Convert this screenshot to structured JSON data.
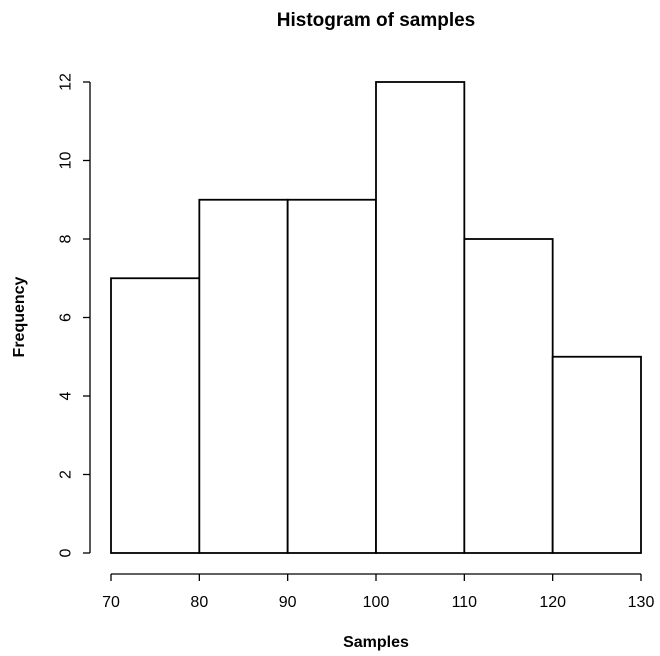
{
  "chart_data": {
    "type": "bar",
    "title": "Histogram of samples",
    "xlabel": "Samples",
    "ylabel": "Frequency",
    "bins": [
      {
        "start": 70,
        "end": 80,
        "count": 7
      },
      {
        "start": 80,
        "end": 90,
        "count": 9
      },
      {
        "start": 90,
        "end": 100,
        "count": 9
      },
      {
        "start": 100,
        "end": 110,
        "count": 12
      },
      {
        "start": 110,
        "end": 120,
        "count": 8
      },
      {
        "start": 120,
        "end": 130,
        "count": 5
      }
    ],
    "xlim": [
      70,
      130
    ],
    "ylim": [
      0,
      12
    ],
    "xticks": [
      70,
      80,
      90,
      100,
      110,
      120,
      130
    ],
    "yticks": [
      0,
      2,
      4,
      6,
      8,
      10,
      12
    ],
    "grid": false,
    "bar_fill": "#ffffff",
    "bar_stroke": "#000000"
  }
}
